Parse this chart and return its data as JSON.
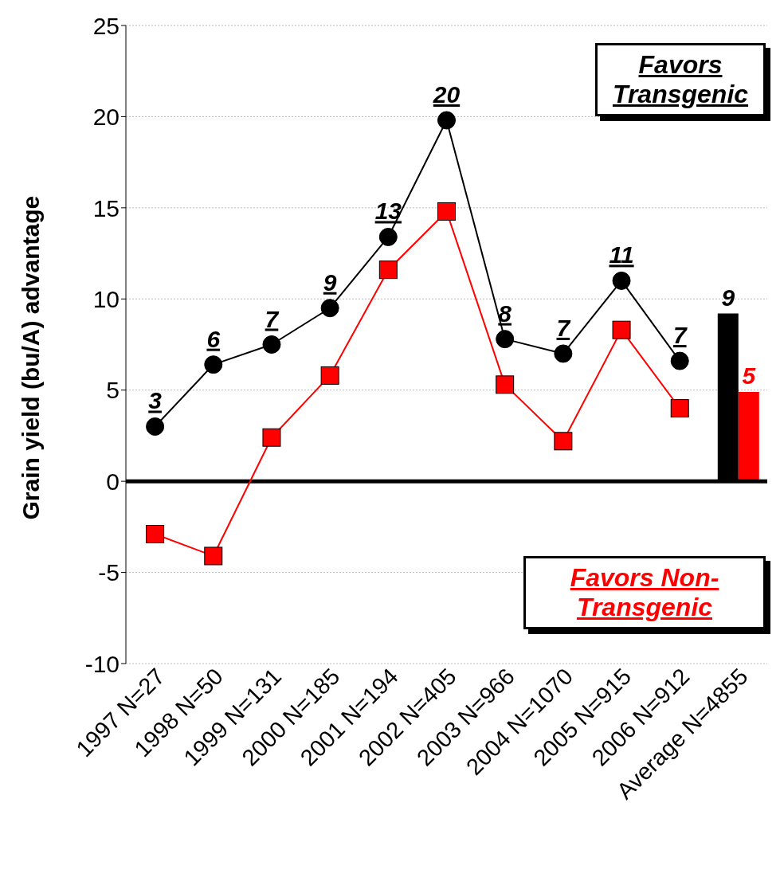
{
  "chart_data": {
    "type": "line",
    "ylabel": "Grain yield (bu/A) advantage",
    "categories": [
      "1997 N=27",
      "1998 N=50",
      "1999 N=131",
      "2000 N=185",
      "2001 N=194",
      "2002 N=405",
      "2003 N=966",
      "2004 N=1070",
      "2005 N=915",
      "2006 N=912",
      "Average N=4855"
    ],
    "series": [
      {
        "color": "#000000",
        "marker": "circle",
        "values": [
          3.0,
          6.4,
          7.5,
          9.5,
          13.4,
          19.8,
          7.8,
          7.0,
          11.0,
          6.6,
          null
        ],
        "value_labels": [
          "3",
          "6",
          "7",
          "9",
          "13",
          "20",
          "8",
          "7",
          "11",
          "7",
          null
        ]
      },
      {
        "color": "#ff0000",
        "marker": "square",
        "values": [
          -2.9,
          -4.1,
          2.4,
          5.8,
          11.6,
          14.8,
          5.3,
          2.2,
          8.3,
          4.0,
          null
        ]
      },
      {
        "type": "bar",
        "color": "#000000",
        "values": [
          null,
          null,
          null,
          null,
          null,
          null,
          null,
          null,
          null,
          null,
          9.2
        ],
        "value_labels": [
          null,
          null,
          null,
          null,
          null,
          null,
          null,
          null,
          null,
          null,
          "9"
        ]
      },
      {
        "type": "bar",
        "color": "#ff0000",
        "values": [
          null,
          null,
          null,
          null,
          null,
          null,
          null,
          null,
          null,
          null,
          4.9
        ],
        "value_labels": [
          null,
          null,
          null,
          null,
          null,
          null,
          null,
          null,
          null,
          null,
          "5"
        ]
      }
    ],
    "ylim": [
      -10,
      25
    ],
    "yticks": [
      -10,
      -5,
      0,
      5,
      10,
      15,
      20,
      25
    ],
    "grid": "y",
    "ref_lines": [
      {
        "axis": "y",
        "value": 0,
        "color": "#000000"
      }
    ],
    "annotations": [
      "Favors Transgenic",
      "Favors Non-Transgenic"
    ]
  }
}
